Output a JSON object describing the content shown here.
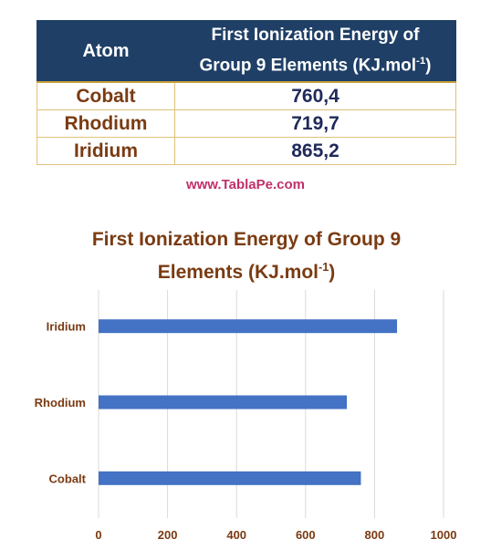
{
  "table": {
    "headers": {
      "atom": "Atom",
      "energy_line1": "First Ionization Energy of",
      "energy_line2": "Group 9 Elements (KJ.mol",
      "energy_sup": "-1",
      "energy_end": ")"
    },
    "rows": [
      {
        "atom": "Cobalt",
        "energy": "760,4"
      },
      {
        "atom": "Rhodium",
        "energy": "719,7"
      },
      {
        "atom": "Iridium",
        "energy": "865,2"
      }
    ]
  },
  "watermark": "www.TablaPe.com",
  "chart_data": {
    "type": "bar",
    "orientation": "horizontal",
    "title_line1": "First Ionization Energy of Group 9",
    "title_line2": "Elements (KJ.mol",
    "title_sup": "-1",
    "title_end": ")",
    "categories": [
      "Cobalt",
      "Rhodium",
      "Iridium"
    ],
    "values": [
      760.4,
      719.7,
      865.2
    ],
    "xlim": [
      0,
      1000
    ],
    "xticks": [
      "0",
      "200",
      "400",
      "600",
      "800",
      "1000"
    ],
    "grid": true,
    "legend": "none"
  },
  "colors": {
    "header_bg": "#1f3f66",
    "bar": "#4472c4",
    "atom_text": "#7a3b12",
    "value_text": "#1f2a5a",
    "watermark": "#c0306b",
    "axis_text": "#7a3b12"
  }
}
